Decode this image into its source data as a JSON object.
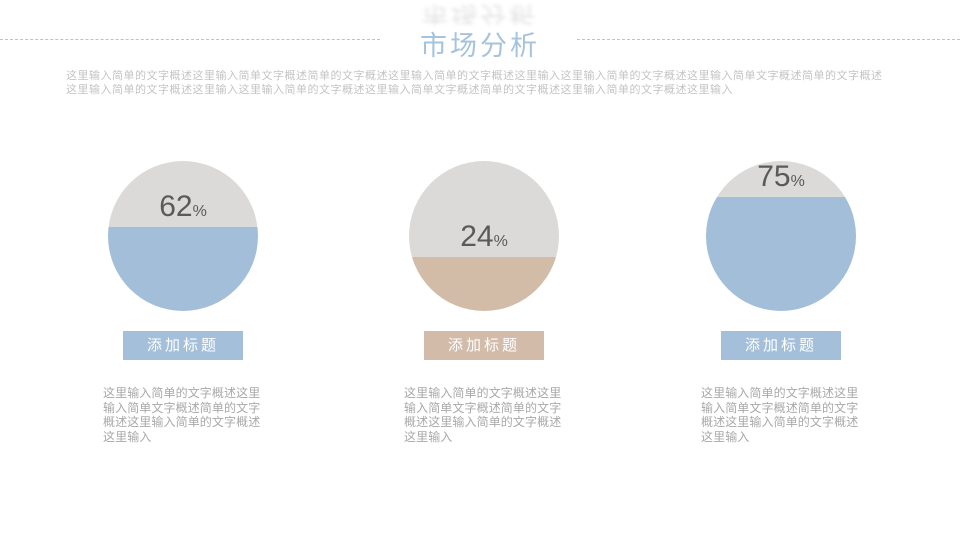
{
  "slide": {
    "title": "市场分析",
    "intro_lines": [
      "这里输入简单的文字概述这里输入简单文字概述简单的文字概述这里输入简单的文字概述这里输入这里输入简单的文字概述这里输入简单文字概述简单的文字概述",
      "这里输入简单的文字概述这里输入这里输入简单的文字概述这里输入简单文字概述简单的文字概述这里输入简单的文字概述这里输入"
    ],
    "colors": {
      "circle_gray": "#dbdad8",
      "title_color": "#a6c3de",
      "dash_color": "#aac7db",
      "accent_blue": "#a3bed8",
      "accent_tan": "#d2bba7"
    },
    "columns": [
      {
        "percent_value": "62",
        "percent_sign": "%",
        "fill_color": "#a3bed8",
        "fill_height": "56%",
        "box_label": "添加标题",
        "box_color": "#a3bfd9",
        "body_lines": [
          "这里输入简单的文字概述这里",
          "输入简单文字概述简单的文字",
          "概述这里输入简单的文字概述",
          "这里输入"
        ]
      },
      {
        "percent_value": "24",
        "percent_sign": "%",
        "fill_color": "#d2bba7",
        "fill_height": "36%",
        "box_label": "添加标题",
        "box_color": "#d2bca9",
        "body_lines": [
          "这里输入简单的文字概述这里",
          "输入简单文字概述简单的文字",
          "概述这里输入简单的文字概述",
          "这里输入"
        ]
      },
      {
        "percent_value": "75",
        "percent_sign": "%",
        "fill_color": "#a3bed8",
        "fill_height": "76%",
        "box_label": "添加标题",
        "box_color": "#a3bfd9",
        "body_lines": [
          "这里输入简单的文字概述这里",
          "输入简单文字概述简单的文字",
          "概述这里输入简单的文字概述",
          "这里输入"
        ]
      }
    ]
  },
  "chart_data": {
    "type": "pie",
    "subtype": "percentage-fill-circles",
    "title": "市场分析",
    "series": [
      {
        "name": "添加标题",
        "value": 62,
        "color": "#a3bed8"
      },
      {
        "name": "添加标题",
        "value": 24,
        "color": "#d2bba7"
      },
      {
        "name": "添加标题",
        "value": 75,
        "color": "#a3bed8"
      }
    ]
  }
}
